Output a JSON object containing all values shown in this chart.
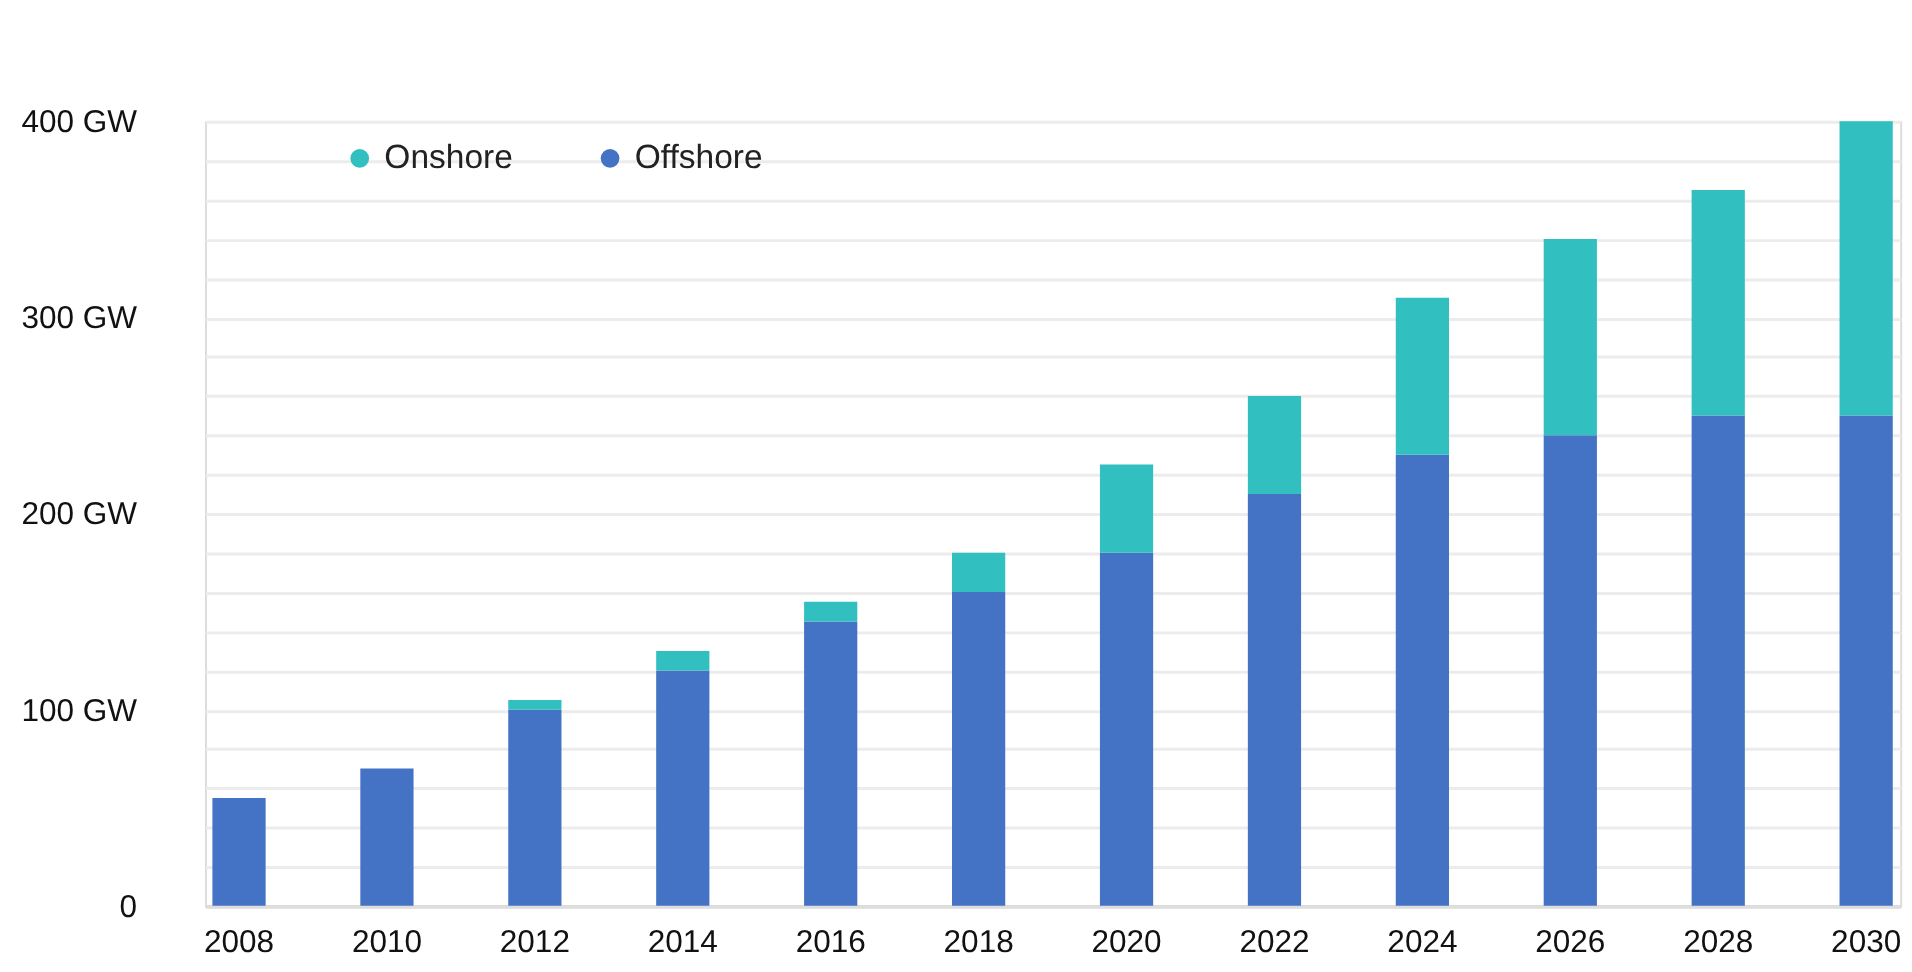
{
  "chart_data": {
    "type": "bar",
    "stacked": true,
    "categories": [
      "2008",
      "2010",
      "2012",
      "2014",
      "2016",
      "2018",
      "2020",
      "2022",
      "2024",
      "2026",
      "2028",
      "2030"
    ],
    "series": [
      {
        "name": "Offshore",
        "color": "#4472c4",
        "values": [
          55,
          70,
          100,
          120,
          145,
          160,
          180,
          210,
          230,
          240,
          250,
          250
        ]
      },
      {
        "name": "Onshore",
        "color": "#31bfc0",
        "values": [
          0,
          0,
          5,
          10,
          10,
          20,
          45,
          50,
          80,
          100,
          115,
          150
        ]
      }
    ],
    "ylim": [
      0,
      400
    ],
    "yticks": [
      0,
      {
        "value": 20,
        "label": null
      },
      {
        "value": 40,
        "label": null
      },
      {
        "value": 60,
        "label": null
      },
      {
        "value": 80,
        "label": null
      },
      {
        "value": 100,
        "label": "100  GW"
      },
      {
        "value": 120,
        "label": null
      },
      {
        "value": 140,
        "label": null
      },
      {
        "value": 160,
        "label": null
      },
      {
        "value": 180,
        "label": null
      },
      {
        "value": 200,
        "label": "200  GW"
      },
      {
        "value": 220,
        "label": null
      },
      {
        "value": 240,
        "label": null
      },
      {
        "value": 260,
        "label": null
      },
      {
        "value": 280,
        "label": null
      },
      {
        "value": 300,
        "label": "300  GW"
      },
      {
        "value": 320,
        "label": null
      },
      {
        "value": 340,
        "label": null
      },
      {
        "value": 360,
        "label": null
      },
      {
        "value": 380,
        "label": null
      },
      {
        "value": 400,
        "label": "400  GW"
      }
    ],
    "grid": "y",
    "legend": "top left"
  }
}
